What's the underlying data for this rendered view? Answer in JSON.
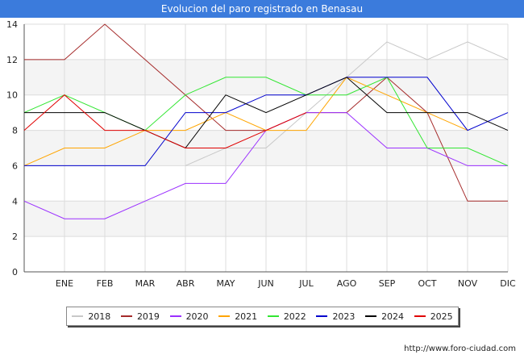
{
  "header": {
    "title": "Evolucion del paro registrado en Benasau"
  },
  "footer": {
    "url": "http://www.foro-ciudad.com"
  },
  "chart_data": {
    "type": "line",
    "title": "Evolucion del paro registrado en Benasau",
    "xlabel": "",
    "ylabel": "",
    "categories": [
      "",
      "ENE",
      "FEB",
      "MAR",
      "ABR",
      "MAY",
      "JUN",
      "JUL",
      "AGO",
      "SEP",
      "OCT",
      "NOV",
      "DIC"
    ],
    "ylim": [
      0,
      14
    ],
    "yticks": [
      0,
      2,
      4,
      6,
      8,
      10,
      12,
      14
    ],
    "grid": true,
    "legend_position": "bottom",
    "series": [
      {
        "name": "2018",
        "color": "#c8c8c8",
        "values": [
          null,
          null,
          null,
          null,
          6,
          7,
          7,
          9,
          11,
          13,
          12,
          13,
          12
        ]
      },
      {
        "name": "2019",
        "color": "#a52a2a",
        "values": [
          12,
          12,
          14,
          12,
          10,
          8,
          8,
          9,
          9,
          11,
          9,
          4,
          4
        ]
      },
      {
        "name": "2020",
        "color": "#9b30ff",
        "values": [
          4,
          3,
          3,
          4,
          5,
          5,
          8,
          9,
          9,
          7,
          7,
          6,
          6
        ]
      },
      {
        "name": "2021",
        "color": "#ffa500",
        "values": [
          6,
          7,
          7,
          8,
          8,
          9,
          8,
          8,
          11,
          10,
          9,
          8,
          null
        ]
      },
      {
        "name": "2022",
        "color": "#32e632",
        "values": [
          9,
          10,
          9,
          8,
          10,
          11,
          11,
          10,
          10,
          11,
          7,
          7,
          6
        ]
      },
      {
        "name": "2023",
        "color": "#0000cd",
        "values": [
          6,
          6,
          6,
          6,
          9,
          9,
          10,
          10,
          11,
          11,
          11,
          8,
          9
        ]
      },
      {
        "name": "2024",
        "color": "#000000",
        "values": [
          9,
          9,
          9,
          8,
          7,
          10,
          9,
          10,
          11,
          9,
          9,
          9,
          8
        ]
      },
      {
        "name": "2025",
        "color": "#e00000",
        "values": [
          8,
          10,
          8,
          8,
          7,
          7,
          8,
          9,
          null,
          null,
          null,
          null,
          null
        ]
      }
    ]
  }
}
